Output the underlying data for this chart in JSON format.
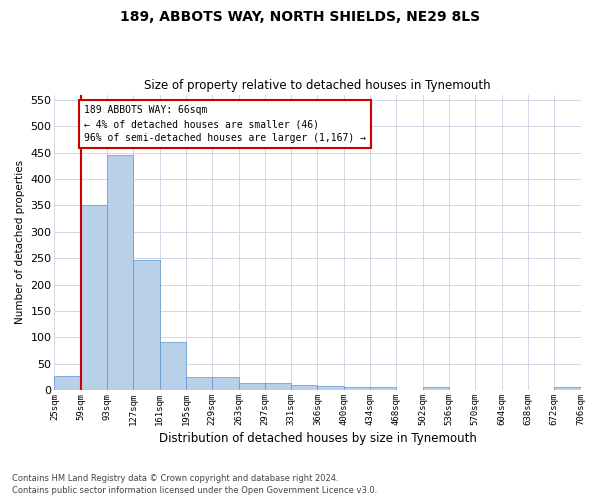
{
  "title1": "189, ABBOTS WAY, NORTH SHIELDS, NE29 8LS",
  "title2": "Size of property relative to detached houses in Tynemouth",
  "xlabel": "Distribution of detached houses by size in Tynemouth",
  "ylabel": "Number of detached properties",
  "bar_values": [
    27,
    350,
    445,
    247,
    91,
    24,
    24,
    13,
    13,
    10,
    7,
    6,
    5,
    0,
    5,
    0,
    0,
    0,
    0,
    5
  ],
  "categories": [
    "25sqm",
    "59sqm",
    "93sqm",
    "127sqm",
    "161sqm",
    "195sqm",
    "229sqm",
    "263sqm",
    "297sqm",
    "331sqm",
    "366sqm",
    "400sqm",
    "434sqm",
    "468sqm",
    "502sqm",
    "536sqm",
    "570sqm",
    "604sqm",
    "638sqm",
    "672sqm",
    "706sqm"
  ],
  "bar_color": "#b8d0e8",
  "bar_edge_color": "#5a96cc",
  "grid_color": "#d0d8e8",
  "annotation_line_color": "#cc0000",
  "annotation_box_color": "#cc0000",
  "annotation_text": "189 ABBOTS WAY: 66sqm\n← 4% of detached houses are smaller (46)\n96% of semi-detached houses are larger (1,167) →",
  "property_bin": 1,
  "ylim": [
    0,
    560
  ],
  "yticks": [
    0,
    50,
    100,
    150,
    200,
    250,
    300,
    350,
    400,
    450,
    500,
    550
  ],
  "footer1": "Contains HM Land Registry data © Crown copyright and database right 2024.",
  "footer2": "Contains public sector information licensed under the Open Government Licence v3.0."
}
